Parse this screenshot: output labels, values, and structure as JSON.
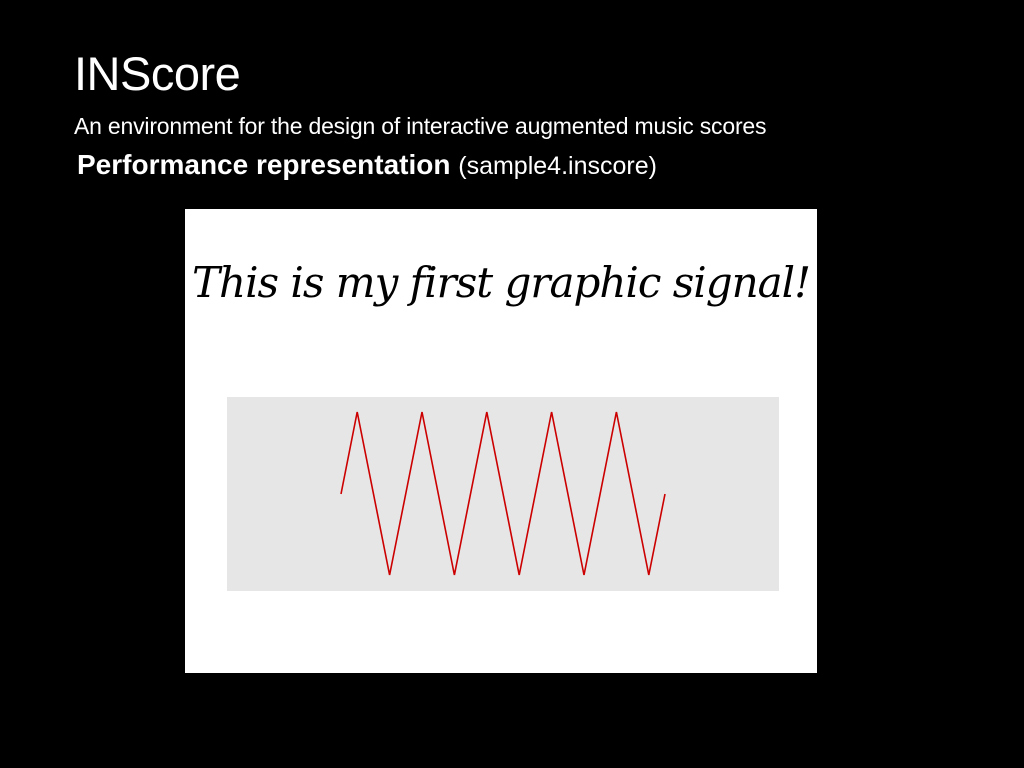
{
  "slide": {
    "title": "INScore",
    "subtitle": "An environment for the design of interactive augmented music scores",
    "heading_bold": "Performance representation",
    "heading_file": "(sample4.inscore)"
  },
  "score": {
    "text": "This is my first graphic signal!",
    "signal": {
      "shape": "triangle-wave",
      "color": "#cc0000",
      "background": "#e6e6e6",
      "periods": 5
    }
  },
  "colors": {
    "background": "#000000",
    "text": "#ffffff",
    "score_background": "#ffffff"
  }
}
